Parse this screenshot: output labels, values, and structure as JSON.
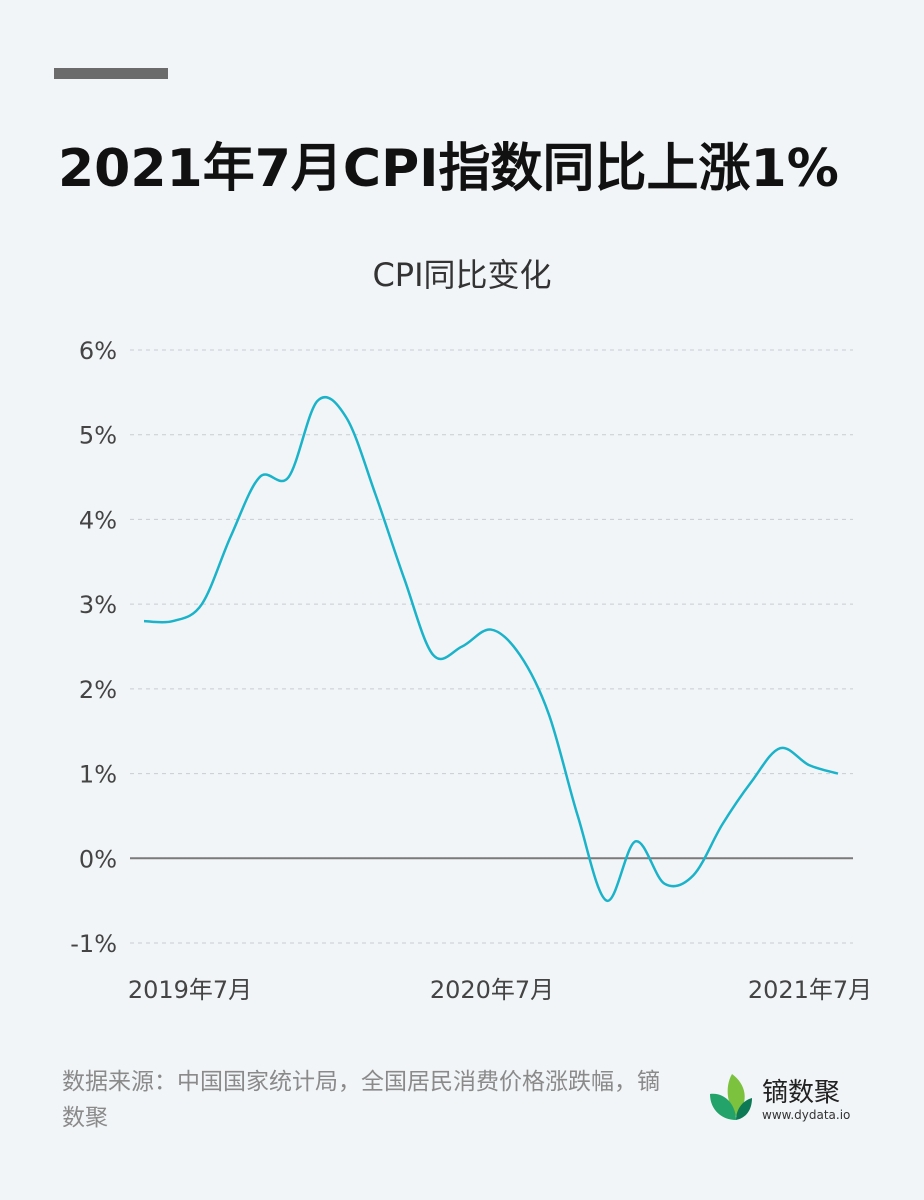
{
  "header": {
    "title": "2021年7月CPI指数同比上涨1%"
  },
  "chart_data": {
    "type": "line",
    "title": "CPI同比变化",
    "xlabel": "",
    "ylabel": "",
    "ylim": [
      -1,
      6
    ],
    "y_ticks": [
      "-1%",
      "0%",
      "1%",
      "2%",
      "3%",
      "4%",
      "5%",
      "6%"
    ],
    "x_tick_labels": [
      "2019年7月",
      "2020年7月",
      "2021年7月"
    ],
    "grid": true,
    "legend": "none",
    "colors": {
      "line": "#1ab3c9",
      "grid": "#c8cdd2",
      "zero_line": "#7a7a7a"
    },
    "x": [
      "2019-07",
      "2019-08",
      "2019-09",
      "2019-10",
      "2019-11",
      "2019-12",
      "2020-01",
      "2020-02",
      "2020-03",
      "2020-04",
      "2020-05",
      "2020-06",
      "2020-07",
      "2020-08",
      "2020-09",
      "2020-10",
      "2020-11",
      "2020-12",
      "2021-01",
      "2021-02",
      "2021-03",
      "2021-04",
      "2021-05",
      "2021-06",
      "2021-07"
    ],
    "values": [
      2.8,
      2.8,
      3.0,
      3.8,
      4.5,
      4.5,
      5.4,
      5.2,
      4.3,
      3.3,
      2.4,
      2.5,
      2.7,
      2.4,
      1.7,
      0.5,
      -0.5,
      0.2,
      -0.3,
      -0.2,
      0.4,
      0.9,
      1.3,
      1.1,
      1.0
    ]
  },
  "footer": {
    "source": "数据来源：中国国家统计局，全国居民消费价格涨跌幅，镝数聚",
    "logo_name": "镝数聚",
    "logo_url": "www.dydata.io"
  }
}
